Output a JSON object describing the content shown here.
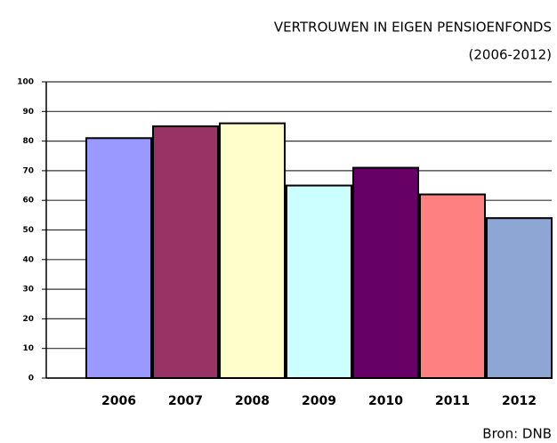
{
  "chart_data": {
    "type": "bar",
    "title": "VERTROUWEN IN EIGEN PENSIOENFONDS",
    "subtitle": "(2006-2012)",
    "source": "Bron: DNB",
    "categories": [
      "2006",
      "2007",
      "2008",
      "2009",
      "2010",
      "2011",
      "2012"
    ],
    "values": [
      81,
      85,
      86,
      65,
      71,
      62,
      54
    ],
    "colors": [
      "#9999ff",
      "#993366",
      "#ffffcc",
      "#ccffff",
      "#660066",
      "#ff8080",
      "#8ea6d4"
    ],
    "ylim": [
      0,
      100
    ],
    "yticks": [
      0,
      10,
      20,
      30,
      40,
      50,
      60,
      70,
      80,
      90,
      100
    ],
    "grid": true
  }
}
